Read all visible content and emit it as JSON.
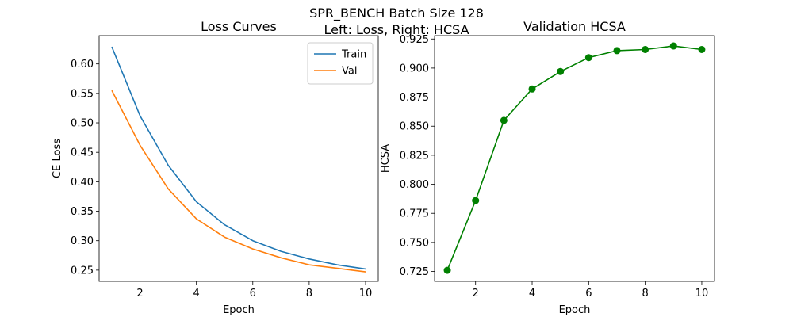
{
  "figure": {
    "suptitle_line1": "SPR_BENCH Batch Size 128",
    "suptitle_line2": "Left: Loss, Right: HCSA"
  },
  "chart_data": [
    {
      "type": "line",
      "title": "Loss Curves",
      "xlabel": "Epoch",
      "ylabel": "CE Loss",
      "x": [
        1,
        2,
        3,
        4,
        5,
        6,
        7,
        8,
        9,
        10
      ],
      "xlim": [
        0.55,
        10.45
      ],
      "ylim": [
        0.231,
        0.648
      ],
      "xticks": [
        2,
        4,
        6,
        8,
        10
      ],
      "xtick_labels": [
        "2",
        "4",
        "6",
        "8",
        "10"
      ],
      "yticks": [
        0.25,
        0.3,
        0.35,
        0.4,
        0.45,
        0.5,
        0.55,
        0.6
      ],
      "ytick_labels": [
        "0.25",
        "0.30",
        "0.35",
        "0.40",
        "0.45",
        "0.50",
        "0.55",
        "0.60"
      ],
      "legend_position": "top-right",
      "grid": false,
      "series": [
        {
          "name": "Train",
          "color": "#1f77b4",
          "values": [
            0.629,
            0.512,
            0.428,
            0.366,
            0.327,
            0.3,
            0.282,
            0.269,
            0.259,
            0.252
          ]
        },
        {
          "name": "Val",
          "color": "#ff7f0e",
          "values": [
            0.555,
            0.462,
            0.388,
            0.337,
            0.306,
            0.286,
            0.271,
            0.259,
            0.253,
            0.247
          ]
        }
      ]
    },
    {
      "type": "line",
      "title": "Validation HCSA",
      "xlabel": "Epoch",
      "ylabel": "HCSA",
      "x": [
        1,
        2,
        3,
        4,
        5,
        6,
        7,
        8,
        9,
        10
      ],
      "xlim": [
        0.55,
        10.45
      ],
      "ylim": [
        0.7165,
        0.9279
      ],
      "xticks": [
        2,
        4,
        6,
        8,
        10
      ],
      "xtick_labels": [
        "2",
        "4",
        "6",
        "8",
        "10"
      ],
      "yticks": [
        0.725,
        0.75,
        0.775,
        0.8,
        0.825,
        0.85,
        0.875,
        0.9,
        0.925
      ],
      "ytick_labels": [
        "0.725",
        "0.750",
        "0.775",
        "0.800",
        "0.825",
        "0.850",
        "0.875",
        "0.900",
        "0.925"
      ],
      "grid": false,
      "series": [
        {
          "color": "#008000",
          "marker": "circle",
          "values": [
            0.726,
            0.786,
            0.855,
            0.882,
            0.897,
            0.909,
            0.915,
            0.916,
            0.919,
            0.916
          ]
        }
      ]
    }
  ]
}
